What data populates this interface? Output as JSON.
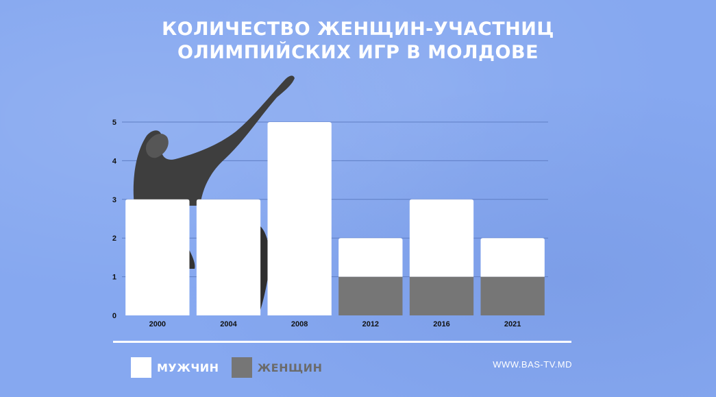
{
  "title": {
    "line1": "КОЛИЧЕСТВО ЖЕНЩИН-УЧАСТНИЦ",
    "line2": "ОЛИМПИЙСКИХ ИГР В МОЛДОВЕ"
  },
  "chart_data": {
    "type": "bar",
    "stacked": true,
    "categories": [
      "2000",
      "2004",
      "2008",
      "2012",
      "2016",
      "2021"
    ],
    "series": [
      {
        "name": "ЖЕНЩИН",
        "color": "#767676",
        "values": [
          0,
          0,
          0,
          1,
          1,
          1
        ]
      },
      {
        "name": "МУЖЧИН",
        "color": "#ffffff",
        "values": [
          3,
          3,
          5,
          1,
          2,
          1
        ]
      }
    ],
    "y_ticks": [
      0,
      1,
      2,
      3,
      4,
      5
    ],
    "ylim": [
      0,
      5
    ],
    "grid": true,
    "legend_position": "bottom-left"
  },
  "legend": {
    "men_label": "МУЖЧИН",
    "women_label": "ЖЕНЩИН",
    "men_color": "#ffffff",
    "women_color": "#767676",
    "men_text_color": "#ffffff",
    "women_text_color": "#6b6b6b"
  },
  "source": "WWW.BAS-TV.MD",
  "decoration": {
    "image": "gymnast-statue-photo"
  }
}
